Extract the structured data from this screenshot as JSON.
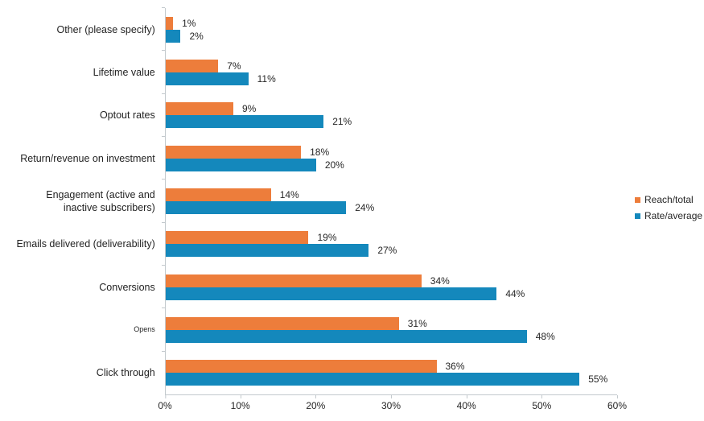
{
  "chart_data": {
    "type": "bar",
    "orientation": "horizontal",
    "title": "",
    "xlabel": "",
    "ylabel": "",
    "xlim": [
      0,
      60
    ],
    "x_ticks": [
      "0%",
      "10%",
      "20%",
      "30%",
      "40%",
      "50%",
      "60%"
    ],
    "grid": false,
    "legend_position": "right",
    "value_suffix": "%",
    "axis_color": "#c3c9cd",
    "text_color": "#262626",
    "categories": [
      "Other (please specify)",
      "Lifetime value",
      "Optout rates",
      "Return/revenue on investment",
      "Engagement (active and\ninactive subscribers)",
      "Emails delivered (deliverability)",
      "Conversions",
      "Opens",
      "Click through"
    ],
    "series": [
      {
        "name": "Reach/total",
        "color": "#ED7D3B",
        "values": [
          1,
          7,
          9,
          18,
          14,
          19,
          34,
          31,
          36
        ]
      },
      {
        "name": "Rate/average",
        "color": "#1488BC",
        "values": [
          2,
          11,
          21,
          20,
          24,
          27,
          44,
          48,
          55
        ]
      }
    ]
  }
}
